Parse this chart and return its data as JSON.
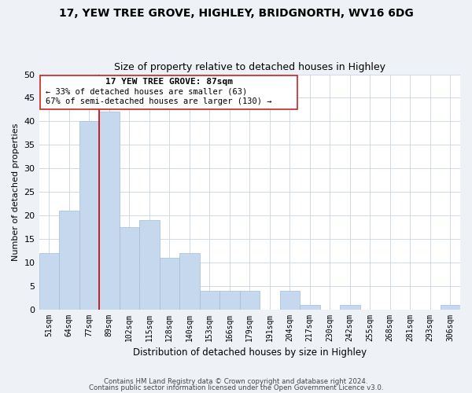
{
  "title": "17, YEW TREE GROVE, HIGHLEY, BRIDGNORTH, WV16 6DG",
  "subtitle": "Size of property relative to detached houses in Highley",
  "xlabel": "Distribution of detached houses by size in Highley",
  "ylabel": "Number of detached properties",
  "bin_labels": [
    "51sqm",
    "64sqm",
    "77sqm",
    "89sqm",
    "102sqm",
    "115sqm",
    "128sqm",
    "140sqm",
    "153sqm",
    "166sqm",
    "179sqm",
    "191sqm",
    "204sqm",
    "217sqm",
    "230sqm",
    "242sqm",
    "255sqm",
    "268sqm",
    "281sqm",
    "293sqm",
    "306sqm"
  ],
  "bar_heights": [
    12,
    21,
    40,
    42,
    17.5,
    19,
    11,
    12,
    4,
    4,
    4,
    0,
    4,
    1,
    0,
    1,
    0,
    0,
    0,
    0,
    1
  ],
  "bar_color": "#c5d8ed",
  "bar_edge_color": "#a0bcd8",
  "annotation_line1": "17 YEW TREE GROVE: 87sqm",
  "annotation_line2": "← 33% of detached houses are smaller (63)",
  "annotation_line3": "67% of semi-detached houses are larger (130) →",
  "marker_color": "#cc0000",
  "ylim": [
    0,
    50
  ],
  "yticks": [
    0,
    5,
    10,
    15,
    20,
    25,
    30,
    35,
    40,
    45,
    50
  ],
  "footnote1": "Contains HM Land Registry data © Crown copyright and database right 2024.",
  "footnote2": "Contains public sector information licensed under the Open Government Licence v3.0.",
  "bg_color": "#eef2f7",
  "plot_bg_color": "#ffffff"
}
